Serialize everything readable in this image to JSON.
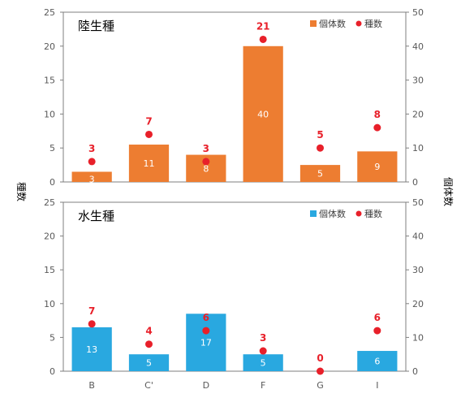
{
  "shared": {
    "categories": [
      "B",
      "C'",
      "D",
      "F",
      "G",
      "I"
    ],
    "left_axis_label": "種数",
    "right_axis_label": "個体数"
  },
  "chart_data": [
    {
      "type": "bar",
      "panel_title": "陸生種",
      "categories": [
        "B",
        "C'",
        "D",
        "F",
        "G",
        "I"
      ],
      "series": [
        {
          "name": "個体数",
          "kind": "bar",
          "axis": "right",
          "color": "#ED7D31",
          "values": [
            3,
            11,
            8,
            40,
            5,
            9
          ]
        },
        {
          "name": "種数",
          "kind": "point",
          "axis": "left",
          "color": "#E8202A",
          "values": [
            3,
            7,
            3,
            21,
            5,
            8
          ]
        }
      ],
      "left_axis": {
        "label": "種数",
        "range": [
          0,
          25
        ],
        "ticks": [
          0,
          5,
          10,
          15,
          20,
          25
        ]
      },
      "right_axis": {
        "label": "個体数",
        "range": [
          0,
          50
        ],
        "ticks": [
          0,
          10,
          20,
          30,
          40,
          50
        ]
      },
      "legend_position": "top-right",
      "grid": false
    },
    {
      "type": "bar",
      "panel_title": "水生種",
      "categories": [
        "B",
        "C'",
        "D",
        "F",
        "G",
        "I"
      ],
      "series": [
        {
          "name": "個体数",
          "kind": "bar",
          "axis": "right",
          "color": "#29A8E0",
          "values": [
            13,
            5,
            17,
            5,
            0,
            6
          ]
        },
        {
          "name": "種数",
          "kind": "point",
          "axis": "left",
          "color": "#E8202A",
          "values": [
            7,
            4,
            6,
            3,
            0,
            6
          ]
        }
      ],
      "left_axis": {
        "label": "種数",
        "range": [
          0,
          25
        ],
        "ticks": [
          0,
          5,
          10,
          15,
          20,
          25
        ]
      },
      "right_axis": {
        "label": "個体数",
        "range": [
          0,
          50
        ],
        "ticks": [
          0,
          10,
          20,
          30,
          40,
          50
        ]
      },
      "legend_position": "top-right",
      "grid": false
    }
  ]
}
